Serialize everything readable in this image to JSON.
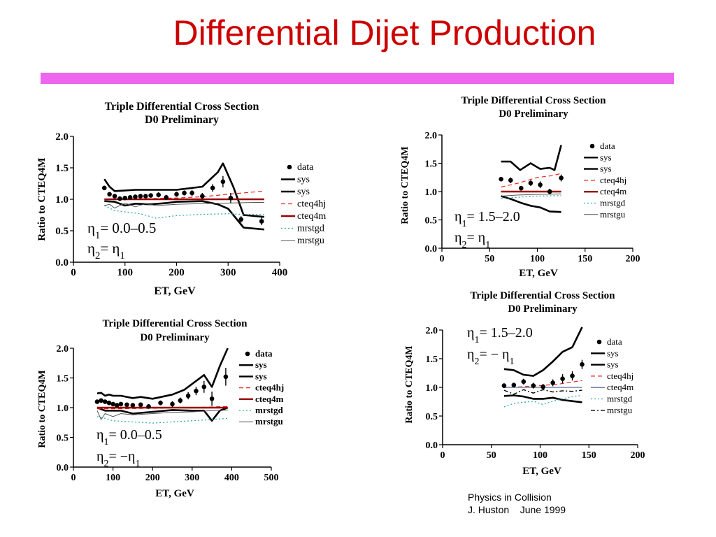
{
  "slide": {
    "title": "Differential Dijet Production",
    "footer_line1": "Physics in Collision",
    "footer_line2": "J. Huston    June 1999"
  },
  "chart_data": [
    {
      "type": "line",
      "title": "Triple Differential Cross Section",
      "subtitle": "D0 Preliminary",
      "xlabel": "ET, GeV",
      "ylabel": "Ratio to CTEQ4M",
      "xlim": [
        0,
        400
      ],
      "ylim": [
        0,
        2
      ],
      "xticks": [
        "0",
        "100",
        "200",
        "300",
        "400"
      ],
      "yticks": [
        "0.0",
        "0.5",
        "1.0",
        "1.5",
        "2.0"
      ],
      "annotation_line1": "η1= 0.0–0.5",
      "annotation_line2": "η2= η1",
      "legend_entries": [
        "data",
        "sys",
        "sys",
        "cteq4hj",
        "cteq4m",
        "mrstgd",
        "mrstgu"
      ],
      "legend_bold": false,
      "series": [
        {
          "name": "data",
          "kind": "points",
          "x": [
            60,
            70,
            80,
            90,
            100,
            110,
            120,
            130,
            140,
            150,
            165,
            180,
            200,
            215,
            230,
            250,
            270,
            290,
            305,
            325,
            365
          ],
          "y": [
            1.18,
            1.08,
            1.05,
            1.01,
            1.02,
            1.03,
            1.04,
            1.05,
            1.05,
            1.06,
            1.07,
            1.03,
            1.08,
            1.1,
            1.1,
            1.05,
            1.18,
            1.28,
            1.02,
            0.68,
            0.65
          ],
          "err": [
            0.03,
            0.03,
            0.03,
            0.03,
            0.03,
            0.03,
            0.03,
            0.03,
            0.03,
            0.03,
            0.04,
            0.04,
            0.04,
            0.04,
            0.05,
            0.05,
            0.06,
            0.09,
            0.08,
            0.05,
            0.06
          ]
        },
        {
          "name": "sys",
          "kind": "line",
          "style": "sys",
          "x": [
            60,
            70,
            80,
            100,
            120,
            150,
            200,
            250,
            280,
            290,
            310,
            330,
            370
          ],
          "y": [
            1.32,
            1.2,
            1.13,
            1.14,
            1.15,
            1.15,
            1.15,
            1.2,
            1.43,
            1.57,
            1.2,
            0.75,
            0.72
          ]
        },
        {
          "name": "sys",
          "kind": "line",
          "style": "sys",
          "x": [
            60,
            80,
            100,
            120,
            150,
            180,
            200,
            250,
            280,
            300,
            330,
            370
          ],
          "y": [
            0.97,
            0.96,
            0.9,
            0.93,
            0.92,
            0.94,
            0.96,
            0.97,
            0.92,
            0.85,
            0.55,
            0.52
          ]
        },
        {
          "name": "cteq4hj",
          "kind": "line",
          "style": "cteq4hj",
          "x": [
            60,
            100,
            150,
            200,
            250,
            300,
            370
          ],
          "y": [
            1.0,
            1.0,
            1.01,
            1.02,
            1.04,
            1.08,
            1.13
          ]
        },
        {
          "name": "cteq4m",
          "kind": "line",
          "style": "cteq4m",
          "x": [
            60,
            370
          ],
          "y": [
            1.0,
            1.0
          ]
        },
        {
          "name": "mrstgd",
          "kind": "line",
          "style": "mrstgd",
          "x": [
            60,
            80,
            100,
            130,
            160,
            200,
            250,
            300,
            330,
            370
          ],
          "y": [
            0.9,
            0.82,
            0.8,
            0.77,
            0.7,
            0.74,
            0.76,
            0.77,
            0.76,
            0.76
          ]
        },
        {
          "name": "mrstgu",
          "kind": "line",
          "style": "mrstgu",
          "x": [
            60,
            70,
            80,
            100,
            120,
            140,
            160,
            200,
            250,
            300,
            350,
            370
          ],
          "y": [
            0.9,
            0.92,
            0.86,
            0.94,
            0.88,
            0.93,
            0.9,
            0.92,
            0.93,
            0.94,
            0.95,
            0.95
          ]
        }
      ]
    },
    {
      "type": "line",
      "title": "Triple Differential Cross Section",
      "subtitle": "D0 Preliminary",
      "xlabel": "ET, GeV",
      "ylabel": "Ratio to CTEQ4M",
      "xlim": [
        0,
        200
      ],
      "ylim": [
        0,
        2
      ],
      "xticks": [
        "0",
        "50",
        "100",
        "150",
        "200"
      ],
      "yticks": [
        "0.0",
        "0.5",
        "1.0",
        "1.5",
        "2.0"
      ],
      "annotation_line1": "η1= 1.5–2.0",
      "annotation_line2": "η2= η1",
      "legend_entries": [
        "data",
        "sys",
        "sys",
        "cteq4hj",
        "cteq4m",
        "mrstgd",
        "mrstgu"
      ],
      "legend_bold": false,
      "series": [
        {
          "name": "data",
          "kind": "points",
          "x": [
            62,
            72,
            83,
            93,
            103,
            113,
            125
          ],
          "y": [
            1.22,
            1.2,
            1.06,
            1.15,
            1.12,
            1.0,
            1.24
          ],
          "err": [
            0.04,
            0.05,
            0.04,
            0.05,
            0.06,
            0.05,
            0.06
          ]
        },
        {
          "name": "sys",
          "kind": "line",
          "style": "sys",
          "x": [
            62,
            72,
            82,
            93,
            103,
            113,
            118,
            125
          ],
          "y": [
            1.53,
            1.53,
            1.38,
            1.5,
            1.4,
            1.42,
            1.38,
            1.82
          ]
        },
        {
          "name": "sys",
          "kind": "line",
          "style": "sys",
          "x": [
            62,
            72,
            83,
            93,
            103,
            113,
            125
          ],
          "y": [
            0.92,
            0.87,
            0.8,
            0.75,
            0.72,
            0.65,
            0.64
          ]
        },
        {
          "name": "cteq4hj",
          "kind": "line",
          "style": "cteq4hj",
          "x": [
            62,
            80,
            100,
            115,
            125
          ],
          "y": [
            1.08,
            1.15,
            1.25,
            1.28,
            1.32
          ]
        },
        {
          "name": "cteq4m",
          "kind": "line",
          "style": "cteq4m",
          "x": [
            62,
            125
          ],
          "y": [
            1.0,
            1.0
          ]
        },
        {
          "name": "mrstgd",
          "kind": "line",
          "style": "mrstgd",
          "x": [
            62,
            80,
            100,
            125
          ],
          "y": [
            0.88,
            0.9,
            0.92,
            0.93
          ]
        },
        {
          "name": "mrstgu",
          "kind": "line",
          "style": "mrstgu",
          "x": [
            62,
            80,
            100,
            125
          ],
          "y": [
            0.92,
            0.94,
            0.95,
            0.96
          ]
        }
      ]
    },
    {
      "type": "line",
      "title": "Triple Differential Cross Section",
      "subtitle": "D0 Preliminary",
      "xlabel": "ET, GeV",
      "ylabel": "Ratio to CTEQ4M",
      "xlim": [
        0,
        500
      ],
      "ylim": [
        0,
        2
      ],
      "xticks": [
        "0",
        "100",
        "200",
        "300",
        "400",
        "500"
      ],
      "yticks": [
        "0.0",
        "0.5",
        "1.0",
        "1.5",
        "2.0"
      ],
      "annotation_line1": "η1= 0.0–0.5",
      "annotation_line2": "η2= −η1",
      "legend_entries": [
        "data",
        "sys",
        "sys",
        "cteq4hj",
        "cteq4m",
        "mrstgd",
        "mrstgu"
      ],
      "legend_bold": true,
      "series": [
        {
          "name": "data",
          "kind": "points",
          "x": [
            60,
            70,
            80,
            90,
            100,
            110,
            120,
            135,
            150,
            170,
            190,
            220,
            250,
            270,
            290,
            310,
            330,
            350,
            385
          ],
          "y": [
            1.1,
            1.12,
            1.1,
            1.08,
            1.06,
            1.04,
            1.06,
            1.05,
            1.04,
            1.05,
            1.02,
            1.08,
            1.06,
            1.12,
            1.2,
            1.28,
            1.35,
            1.15,
            1.52
          ],
          "err": [
            0.03,
            0.03,
            0.03,
            0.03,
            0.03,
            0.03,
            0.03,
            0.03,
            0.03,
            0.03,
            0.04,
            0.04,
            0.05,
            0.05,
            0.06,
            0.07,
            0.1,
            0.12,
            0.15
          ]
        },
        {
          "name": "sys",
          "kind": "line",
          "style": "sys",
          "x": [
            60,
            70,
            80,
            90,
            100,
            120,
            150,
            170,
            200,
            250,
            280,
            310,
            330,
            350,
            370,
            390
          ],
          "y": [
            1.24,
            1.25,
            1.2,
            1.22,
            1.2,
            1.2,
            1.16,
            1.18,
            1.15,
            1.22,
            1.3,
            1.45,
            1.55,
            1.35,
            1.7,
            2.0
          ]
        },
        {
          "name": "sys",
          "kind": "line",
          "style": "sys",
          "x": [
            60,
            80,
            100,
            120,
            150,
            200,
            250,
            300,
            330,
            350,
            370,
            390
          ],
          "y": [
            1.0,
            0.95,
            0.95,
            0.95,
            0.9,
            0.93,
            0.96,
            0.95,
            0.95,
            0.78,
            0.95,
            1.0
          ]
        },
        {
          "name": "cteq4hj",
          "kind": "line",
          "style": "cteq4hj",
          "x": [
            60,
            100,
            200,
            300,
            390
          ],
          "y": [
            0.98,
            0.98,
            0.99,
            1.0,
            1.02
          ]
        },
        {
          "name": "cteq4m",
          "kind": "line",
          "style": "cteq4m",
          "x": [
            60,
            390
          ],
          "y": [
            1.0,
            1.0
          ]
        },
        {
          "name": "mrstgd",
          "kind": "line",
          "style": "mrstgd",
          "x": [
            60,
            80,
            100,
            150,
            200,
            250,
            300,
            350,
            390
          ],
          "y": [
            0.85,
            0.82,
            0.78,
            0.76,
            0.74,
            0.76,
            0.78,
            0.8,
            0.82
          ]
        },
        {
          "name": "mrstgu",
          "kind": "line",
          "style": "mrstgu",
          "x": [
            60,
            70,
            80,
            100,
            120,
            150,
            200,
            250,
            300,
            350,
            390
          ],
          "y": [
            0.95,
            0.8,
            0.9,
            0.85,
            0.9,
            0.88,
            0.9,
            0.92,
            0.93,
            0.95,
            0.96
          ]
        }
      ]
    },
    {
      "type": "line",
      "title": "Triple Differential Cross Section",
      "subtitle": "D0 Preliminary",
      "xlabel": "ET, GeV",
      "ylabel": "Ratio to CTEQ4M",
      "xlim": [
        0,
        200
      ],
      "ylim": [
        0,
        2
      ],
      "xticks": [
        "0",
        "50",
        "100",
        "150",
        "200"
      ],
      "yticks": [
        "0.0",
        "0.5",
        "1.0",
        "1.5",
        "2.0"
      ],
      "annotation_line1": "η1= 1.5–2.0",
      "annotation_line2": "η2= − η1",
      "legend_entries": [
        "data",
        "sys",
        "sys",
        "cteq4hj",
        "cteq4m",
        "mrstgd",
        "mrstgu"
      ],
      "legend_bold": false,
      "series": [
        {
          "name": "data",
          "kind": "points",
          "x": [
            63,
            73,
            83,
            93,
            103,
            113,
            123,
            133,
            143
          ],
          "y": [
            1.03,
            1.04,
            1.1,
            1.03,
            1.01,
            1.08,
            1.15,
            1.2,
            1.4
          ],
          "err": [
            0.04,
            0.04,
            0.05,
            0.05,
            0.05,
            0.06,
            0.08,
            0.08,
            0.08
          ]
        },
        {
          "name": "sys",
          "kind": "line",
          "style": "sys",
          "x": [
            63,
            73,
            83,
            93,
            103,
            113,
            123,
            133,
            143
          ],
          "y": [
            1.32,
            1.3,
            1.22,
            1.2,
            1.3,
            1.45,
            1.62,
            1.7,
            2.05
          ]
        },
        {
          "name": "sys",
          "kind": "line",
          "style": "sys",
          "x": [
            63,
            73,
            83,
            93,
            103,
            113,
            123,
            133,
            143
          ],
          "y": [
            0.85,
            0.86,
            0.84,
            0.8,
            0.8,
            0.82,
            0.78,
            0.76,
            0.74
          ]
        },
        {
          "name": "cteq4hj",
          "kind": "line",
          "style": "cteq4hj",
          "x": [
            63,
            80,
            100,
            120,
            143
          ],
          "y": [
            1.0,
            1.01,
            1.03,
            1.06,
            1.12
          ]
        },
        {
          "name": "cteq4m",
          "kind": "line",
          "style": "cteq4m-blue",
          "x": [
            63,
            143
          ],
          "y": [
            1.0,
            1.0
          ]
        },
        {
          "name": "mrstgd",
          "kind": "line",
          "style": "mrstgd",
          "x": [
            63,
            73,
            83,
            93,
            103,
            113,
            123,
            133,
            143
          ],
          "y": [
            0.66,
            0.72,
            0.74,
            0.76,
            0.7,
            0.76,
            0.8,
            0.84,
            0.86
          ]
        },
        {
          "name": "mrstgu",
          "kind": "line",
          "style": "mrstgu-dashdot",
          "x": [
            63,
            73,
            83,
            93,
            103,
            113,
            123,
            133,
            143
          ],
          "y": [
            0.95,
            0.88,
            0.96,
            0.9,
            0.96,
            0.92,
            0.94,
            0.93,
            0.95
          ]
        }
      ]
    }
  ]
}
